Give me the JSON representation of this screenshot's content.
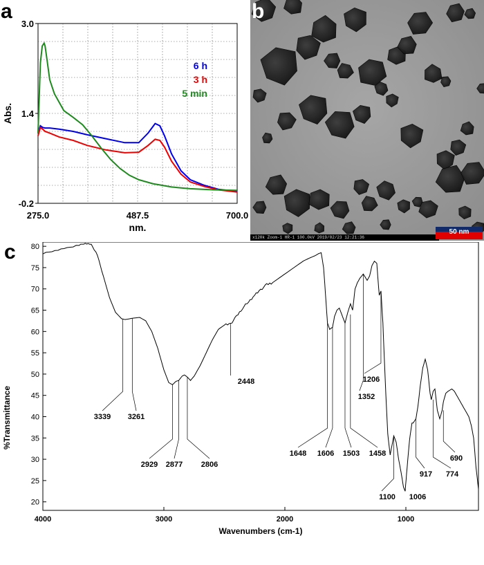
{
  "panels": {
    "a": {
      "letter": "a"
    },
    "b": {
      "letter": "b",
      "scale_bar": "50 nm",
      "meta_text": "x120k Zoom-1 HR-1 100.0kV 2019/02/23 12:21:36"
    },
    "c": {
      "letter": "c"
    }
  },
  "chart_data": [
    {
      "type": "line",
      "panel": "a",
      "title": "",
      "xlabel": "nm.",
      "ylabel": "Abs.",
      "xlim": [
        275.0,
        700.0
      ],
      "ylim": [
        -0.2,
        3.0
      ],
      "x_ticks": [
        "275.0",
        "487.5",
        "700.0"
      ],
      "y_ticks": [
        "3.0",
        "1.4",
        "-0.2"
      ],
      "legend": [
        "6 h",
        "3 h",
        "5 min"
      ],
      "legend_position": "top-right",
      "colors": {
        "6 h": "#0000ee",
        "3 h": "#ee0000",
        "5 min": "#1e8a1e"
      },
      "series": [
        {
          "name": "6 h",
          "x": [
            275,
            280,
            285,
            290,
            300,
            320,
            350,
            380,
            420,
            460,
            490,
            510,
            525,
            535,
            545,
            560,
            580,
            600,
            630,
            660,
            700
          ],
          "y": [
            1.05,
            1.18,
            1.15,
            1.14,
            1.14,
            1.12,
            1.08,
            1.02,
            0.95,
            0.88,
            0.88,
            1.05,
            1.22,
            1.18,
            1.0,
            0.68,
            0.38,
            0.22,
            0.12,
            0.05,
            0.01
          ]
        },
        {
          "name": "3 h",
          "x": [
            275,
            280,
            285,
            290,
            300,
            320,
            350,
            380,
            420,
            460,
            490,
            510,
            525,
            535,
            545,
            560,
            580,
            600,
            630,
            660,
            700
          ],
          "y": [
            1.0,
            1.15,
            1.12,
            1.08,
            1.05,
            0.98,
            0.92,
            0.83,
            0.75,
            0.7,
            0.71,
            0.83,
            0.94,
            0.92,
            0.8,
            0.55,
            0.32,
            0.18,
            0.1,
            0.04,
            0.0
          ]
        },
        {
          "name": "5 min",
          "x": [
            275,
            280,
            284,
            288,
            290,
            295,
            300,
            310,
            330,
            350,
            370,
            390,
            410,
            430,
            450,
            470,
            490,
            520,
            560,
            600,
            650,
            700
          ],
          "y": [
            1.05,
            2.3,
            2.6,
            2.65,
            2.6,
            2.3,
            2.0,
            1.75,
            1.45,
            1.33,
            1.2,
            1.0,
            0.78,
            0.58,
            0.42,
            0.3,
            0.22,
            0.15,
            0.09,
            0.06,
            0.04,
            0.03
          ]
        }
      ]
    },
    {
      "type": "line",
      "panel": "c",
      "title": "",
      "xlabel": "Wavenumbers (cm-1)",
      "ylabel": "%Transmittance",
      "xlim": [
        4000,
        400
      ],
      "ylim": [
        18,
        81
      ],
      "x_ticks": [
        "4000",
        "3000",
        "2000",
        "1000"
      ],
      "y_ticks": [
        "20",
        "25",
        "30",
        "35",
        "40",
        "45",
        "50",
        "55",
        "60",
        "65",
        "70",
        "75",
        "80"
      ],
      "series": [
        {
          "name": "",
          "x": [
            4000,
            3900,
            3800,
            3700,
            3650,
            3600,
            3550,
            3500,
            3450,
            3400,
            3350,
            3320,
            3300,
            3261,
            3200,
            3150,
            3100,
            3050,
            3000,
            2960,
            2929,
            2900,
            2877,
            2850,
            2830,
            2806,
            2780,
            2750,
            2700,
            2650,
            2600,
            2550,
            2500,
            2448,
            2400,
            2350,
            2300,
            2250,
            2200,
            2150,
            2100,
            2050,
            2000,
            1950,
            1900,
            1850,
            1800,
            1750,
            1720,
            1700,
            1680,
            1660,
            1648,
            1630,
            1606,
            1590,
            1570,
            1550,
            1530,
            1503,
            1480,
            1458,
            1440,
            1420,
            1400,
            1380,
            1352,
            1320,
            1300,
            1280,
            1260,
            1240,
            1230,
            1220,
            1206,
            1190,
            1170,
            1150,
            1130,
            1110,
            1100,
            1080,
            1060,
            1040,
            1020,
            1006,
            990,
            970,
            950,
            940,
            917,
            900,
            880,
            860,
            840,
            820,
            800,
            790,
            774,
            760,
            740,
            720,
            700,
            690,
            670,
            650,
            620,
            600,
            580,
            560,
            540,
            520,
            500,
            480,
            460,
            440,
            420,
            400
          ],
          "y": [
            78.3,
            79.0,
            79.6,
            80.3,
            80.7,
            80.4,
            78.0,
            73.0,
            68.0,
            64.5,
            63.0,
            62.8,
            62.9,
            63.1,
            63.3,
            62.5,
            60.0,
            56.0,
            51.0,
            48.0,
            47.5,
            48.3,
            48.5,
            49.5,
            49.8,
            49.3,
            48.5,
            49.5,
            52.0,
            55.0,
            58.0,
            60.5,
            61.5,
            61.8,
            63.5,
            65.5,
            67.0,
            68.5,
            69.8,
            71.0,
            71.5,
            72.5,
            73.5,
            74.5,
            75.5,
            76.5,
            77.2,
            77.8,
            78.3,
            78.5,
            75.0,
            67.0,
            62.0,
            60.5,
            61.0,
            63.5,
            65.0,
            65.5,
            64.0,
            62.0,
            64.5,
            66.5,
            65.0,
            70.0,
            71.5,
            72.5,
            73.5,
            72.0,
            73.0,
            75.5,
            76.5,
            76.0,
            72.0,
            68.5,
            69.5,
            62.0,
            48.0,
            36.0,
            31.0,
            34.0,
            35.5,
            34.0,
            30.0,
            27.0,
            23.5,
            22.5,
            28.0,
            34.5,
            38.5,
            38.5,
            39.5,
            42.5,
            47.5,
            51.5,
            53.5,
            51.0,
            45.5,
            44.0,
            46.0,
            46.5,
            41.5,
            39.5,
            41.5,
            43.5,
            45.5,
            46.0,
            46.5,
            46.0,
            45.0,
            44.0,
            43.0,
            42.0,
            41.0,
            40.0,
            38.0,
            35.0,
            28.0,
            23.0
          ]
        }
      ],
      "peak_labels": [
        "3339",
        "3261",
        "2929",
        "2877",
        "2806",
        "2448",
        "1648",
        "1606",
        "1503",
        "1458",
        "1352",
        "1206",
        "1100",
        "1006",
        "917",
        "774",
        "690"
      ]
    }
  ]
}
